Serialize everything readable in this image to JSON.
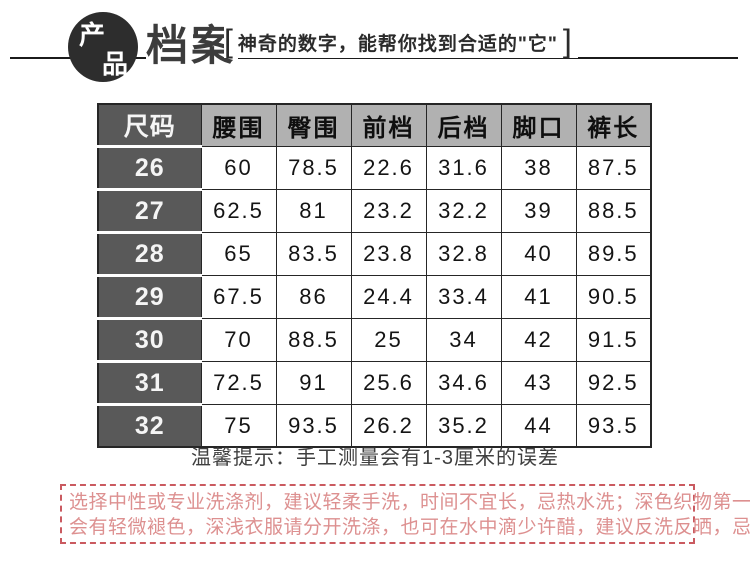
{
  "header": {
    "badge_char_top": "产",
    "badge_char_bottom": "品",
    "title": "档案",
    "bracket_open": "[",
    "tagline": "神奇的数字，能帮你找到合适的\"它\"",
    "bracket_close": "]"
  },
  "table": {
    "columns": [
      "尺码",
      "腰围",
      "臀围",
      "前档",
      "后档",
      "脚口",
      "裤长"
    ],
    "rows": [
      {
        "size": "26",
        "values": [
          "60",
          "78.5",
          "22.6",
          "31.6",
          "38",
          "87.5"
        ]
      },
      {
        "size": "27",
        "values": [
          "62.5",
          "81",
          "23.2",
          "32.2",
          "39",
          "88.5"
        ]
      },
      {
        "size": "28",
        "values": [
          "65",
          "83.5",
          "23.8",
          "32.8",
          "40",
          "89.5"
        ]
      },
      {
        "size": "29",
        "values": [
          "67.5",
          "86",
          "24.4",
          "33.4",
          "41",
          "90.5"
        ]
      },
      {
        "size": "30",
        "values": [
          "70",
          "88.5",
          "25",
          "34",
          "42",
          "91.5"
        ]
      },
      {
        "size": "31",
        "values": [
          "72.5",
          "91",
          "25.6",
          "34.6",
          "43",
          "92.5"
        ]
      },
      {
        "size": "32",
        "values": [
          "75",
          "93.5",
          "26.2",
          "35.2",
          "44",
          "93.5"
        ]
      }
    ]
  },
  "tip": "温馨提示：手工测量会有1-3厘米的误差",
  "care_notice": {
    "line1": "选择中性或专业洗涤剂，建议轻柔手洗，时间不宜长，忌热水洗；深色织物第一次洗涤",
    "line2": "会有轻微褪色，深浅衣服请分开洗涤，也可在水中滴少许醋，建议反洗反晒，忌暴晒。"
  },
  "colors": {
    "table_dark_cell": "#595959",
    "table_header_light": "#b1b1b1",
    "table_border": "#262626",
    "badge_background": "#2d2d2d",
    "care_border": "#ca5a60",
    "care_text": "#dd9090"
  }
}
